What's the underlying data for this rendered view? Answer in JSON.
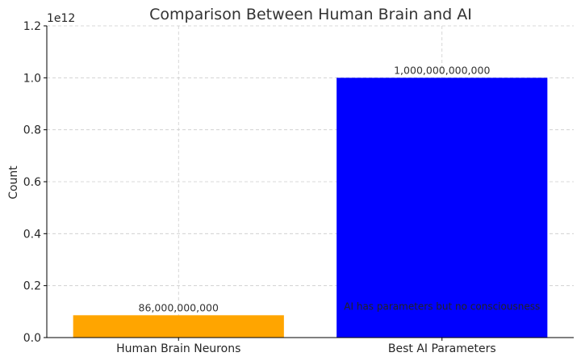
{
  "chart_data": {
    "type": "bar",
    "title": "Comparison Between Human Brain and AI",
    "xlabel": "",
    "ylabel": "Count",
    "offset_label": "1e12",
    "categories": [
      "Human Brain Neurons",
      "Best AI Parameters"
    ],
    "values": [
      86000000000,
      1000000000000
    ],
    "value_labels": [
      "86,000,000,000",
      "1,000,000,000,000"
    ],
    "bar_colors": [
      "#FFA500",
      "#0000FF"
    ],
    "ylim": [
      0,
      1200000000000
    ],
    "yticks": [
      0,
      200000000000,
      400000000000,
      600000000000,
      800000000000,
      1000000000000,
      1200000000000
    ],
    "ytick_labels": [
      "0.0",
      "0.2",
      "0.4",
      "0.6",
      "0.8",
      "1.0",
      "1.2"
    ],
    "grid": true,
    "annotation": {
      "text": "AI has parameters but no consciousness",
      "x_category": "Best AI Parameters",
      "y": 120000000000
    }
  }
}
